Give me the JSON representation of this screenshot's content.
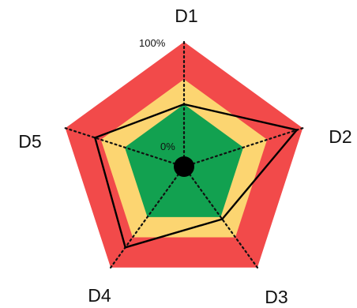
{
  "chart_data": {
    "type": "radar",
    "axes": [
      "D1",
      "D2",
      "D3",
      "D4",
      "D5"
    ],
    "scale_labels": {
      "min": "0%",
      "max": "100%"
    },
    "range": [
      0,
      100
    ],
    "zones": [
      {
        "from": 0,
        "to": 50,
        "color": "#12a150"
      },
      {
        "from": 50,
        "to": 70,
        "color": "#fcd571"
      },
      {
        "from": 70,
        "to": 100,
        "color": "#f24a4a"
      }
    ],
    "series": [
      {
        "values": [
          50,
          95,
          52,
          80,
          75
        ],
        "color": "#000000"
      }
    ],
    "center_marker_color": "#000000",
    "grid": false,
    "legend": "none"
  }
}
